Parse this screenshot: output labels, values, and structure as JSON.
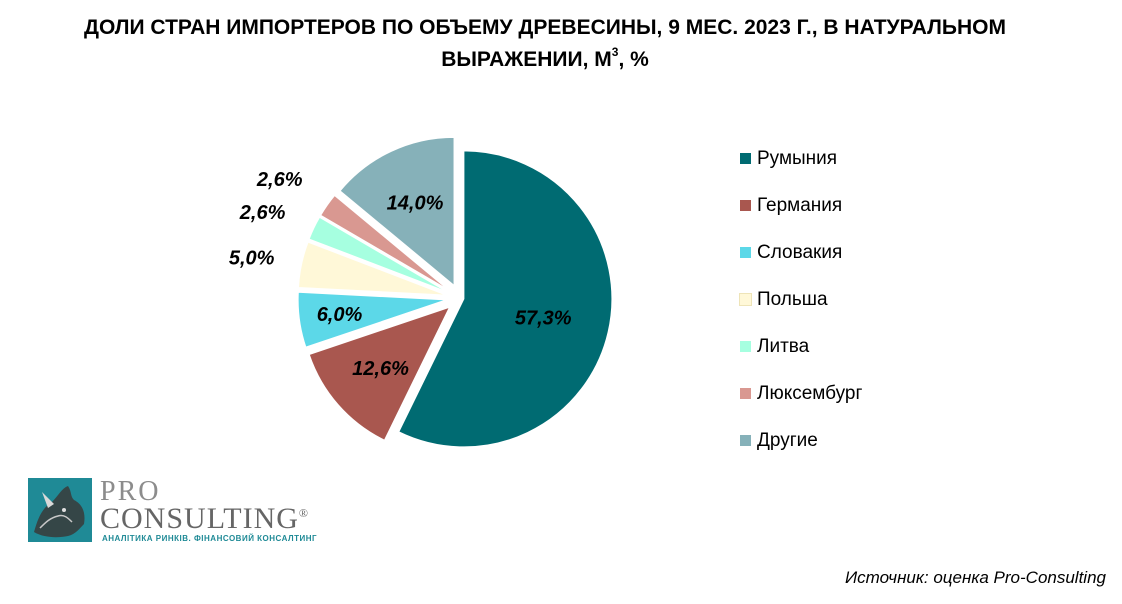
{
  "title": {
    "line1": "ДОЛИ СТРАН ИМПОРТЕРОВ ПО ОБЪЕМУ ДРЕВЕСИНЫ, 9 МЕС. 2023 Г., В НАТУРАЛЬНОМ",
    "line2_pre": "ВЫРАЖЕНИИ, М",
    "line2_sup": "3",
    "line2_post": ", %"
  },
  "chart_data": {
    "type": "pie",
    "title": "ДОЛИ СТРАН ИМПОРТЕРОВ ПО ОБЪЕМУ ДРЕВЕСИНЫ, 9 МЕС. 2023 Г., В НАТУРАЛЬНОМ ВЫРАЖЕНИИ, М3, %",
    "legend_position": "right",
    "slices": [
      {
        "name": "Румыния",
        "value": 57.3,
        "label": "57,3%",
        "color": "#006b72"
      },
      {
        "name": "Германия",
        "value": 12.6,
        "label": "12,6%",
        "color": "#a9574f"
      },
      {
        "name": "Словакия",
        "value": 6.0,
        "label": "6,0%",
        "color": "#5cd8e8"
      },
      {
        "name": "Польша",
        "value": 5.0,
        "label": "5,0%",
        "color": "#fff8d8"
      },
      {
        "name": "Литва",
        "value": 2.6,
        "label": "2,6%",
        "color": "#a6ffe0"
      },
      {
        "name": "Люксембург",
        "value": 2.6,
        "label": "2,6%",
        "color": "#d99891"
      },
      {
        "name": "Другие",
        "value": 14.0,
        "label": "14,0%",
        "color": "#86b1b9"
      }
    ]
  },
  "logo": {
    "pro": "PRO",
    "consulting": "CONSULTING",
    "registered": "®",
    "tagline": "АНАЛІТИКА РИНКІВ. ФІНАНСОВИЙ КОНСАЛТИНГ"
  },
  "source": "Источник: оценка Pro-Consulting"
}
